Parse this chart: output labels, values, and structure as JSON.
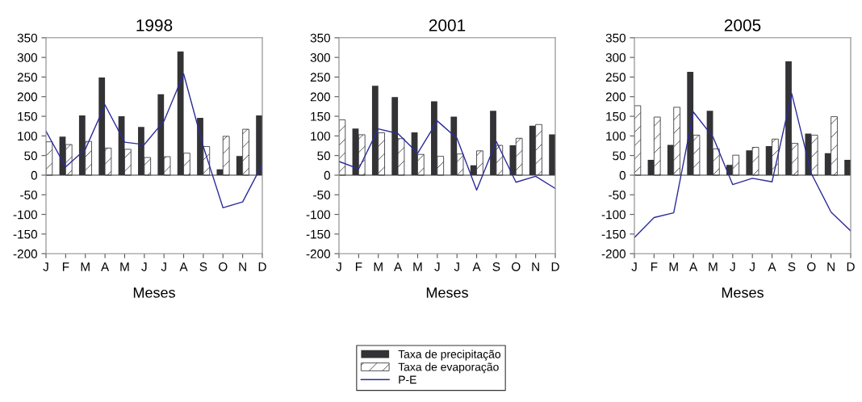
{
  "chart_data": [
    {
      "type": "bar",
      "title": "1998",
      "xlabel": "Meses",
      "ref_lines": [
        {
          "axis": "y",
          "value": 0,
          "color": "#333333"
        }
      ],
      "categories": [
        "J",
        "F",
        "M",
        "A",
        "M",
        "J",
        "J",
        "A",
        "S",
        "O",
        "N",
        "D"
      ],
      "ylim": [
        -200,
        350
      ],
      "yticks": [
        -200,
        -150,
        -100,
        -50,
        0,
        50,
        100,
        150,
        200,
        250,
        300,
        350
      ],
      "legend": "bottom",
      "grid": false,
      "series": [
        {
          "name": "Taxa de precipitação",
          "color": "#333336",
          "values": [
            null,
            98,
            152,
            249,
            150,
            123,
            206,
            315,
            146,
            15,
            49,
            152
          ]
        },
        {
          "name": "Taxa de evaporação",
          "color": "#333336",
          "values": [
            85,
            78,
            86,
            69,
            66,
            45,
            47,
            56,
            73,
            99,
            117,
            null
          ]
        },
        {
          "name": "P-E",
          "type": "line",
          "color": "#2b2b9a",
          "values": [
            112,
            21,
            66,
            179,
            84,
            78,
            138,
            258,
            73,
            -83,
            -68,
            28
          ]
        }
      ]
    },
    {
      "type": "bar",
      "title": "2001",
      "xlabel": "Meses",
      "ref_lines": [
        {
          "axis": "y",
          "value": 0,
          "color": "#333333"
        }
      ],
      "categories": [
        "J",
        "F",
        "M",
        "A",
        "M",
        "J",
        "J",
        "A",
        "S",
        "O",
        "N",
        "D"
      ],
      "ylim": [
        -200,
        350
      ],
      "yticks": [
        -200,
        -150,
        -100,
        -50,
        0,
        50,
        100,
        150,
        200,
        250,
        300,
        350
      ],
      "legend": "bottom",
      "grid": false,
      "series": [
        {
          "name": "Taxa de precipitação",
          "color": "#333336",
          "values": [
            null,
            119,
            228,
            199,
            109,
            188,
            149,
            25,
            164,
            76,
            126,
            104
          ]
        },
        {
          "name": "Taxa de evaporação",
          "color": "#333336",
          "values": [
            141,
            103,
            108,
            93,
            53,
            48,
            54,
            62,
            76,
            94,
            129,
            null
          ]
        },
        {
          "name": "P-E",
          "type": "line",
          "color": "#2b2b9a",
          "values": [
            35,
            16,
            118,
            106,
            56,
            138,
            94,
            -38,
            86,
            -18,
            -3,
            -34
          ]
        }
      ]
    },
    {
      "type": "bar",
      "title": "2005",
      "xlabel": "Meses",
      "ref_lines": [
        {
          "axis": "y",
          "value": 0,
          "color": "#333333"
        }
      ],
      "categories": [
        "J",
        "F",
        "M",
        "A",
        "M",
        "J",
        "J",
        "A",
        "S",
        "O",
        "N",
        "D"
      ],
      "ylim": [
        -200,
        350
      ],
      "yticks": [
        -200,
        -150,
        -100,
        -50,
        0,
        50,
        100,
        150,
        200,
        250,
        300,
        350
      ],
      "legend": "bottom",
      "grid": false,
      "series": [
        {
          "name": "Taxa de precipitação",
          "color": "#333336",
          "values": [
            null,
            39,
            77,
            263,
            164,
            26,
            63,
            74,
            290,
            106,
            56,
            39
          ]
        },
        {
          "name": "Taxa de evaporação",
          "color": "#333336",
          "values": [
            177,
            148,
            173,
            102,
            67,
            51,
            71,
            92,
            81,
            102,
            149,
            null
          ]
        },
        {
          "name": "P-E",
          "type": "line",
          "color": "#2b2b9a",
          "values": [
            -159,
            -108,
            -96,
            161,
            97,
            -24,
            -8,
            -17,
            208,
            4,
            -94,
            -142
          ]
        }
      ]
    }
  ]
}
